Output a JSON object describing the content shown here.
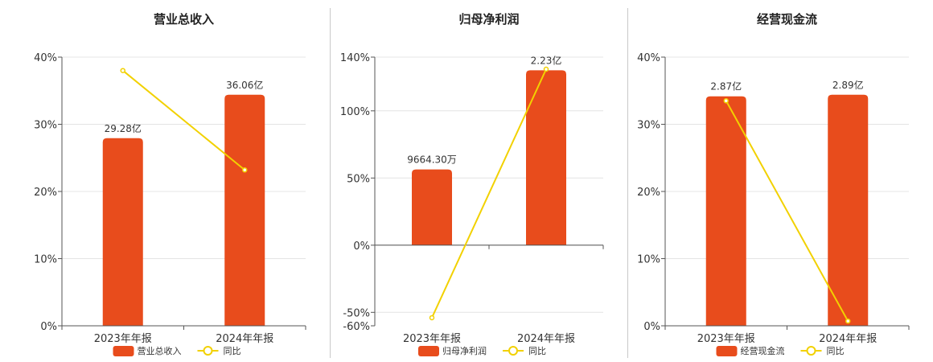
{
  "colors": {
    "bar": "#E84C1C",
    "line": "#F2D100",
    "grid": "#e4e4e4",
    "axis": "#555555"
  },
  "legend_line_label": "同比",
  "chart_data": [
    {
      "type": "bar",
      "title": "营业总收入",
      "categories": [
        "2023年年报",
        "2024年年报"
      ],
      "series": [
        {
          "name": "营业总收入",
          "type": "bar",
          "values": [
            29.28,
            36.06
          ],
          "labels": [
            "29.28亿",
            "36.06亿"
          ]
        },
        {
          "name": "同比",
          "type": "line",
          "values": [
            38.0,
            23.2
          ]
        }
      ],
      "y_axis": {
        "ticks": [
          0,
          10,
          20,
          30,
          40
        ],
        "tick_labels": [
          "0%",
          "10%",
          "20%",
          "30%",
          "40%"
        ],
        "ylim": [
          0,
          40
        ]
      },
      "grid": true,
      "legend_position": "bottom"
    },
    {
      "type": "bar",
      "title": "归母净利润",
      "categories": [
        "2023年年报",
        "2024年年报"
      ],
      "series": [
        {
          "name": "归母净利润",
          "type": "bar",
          "values": [
            0.96643,
            2.23
          ],
          "labels": [
            "9664.30万",
            "2.23亿"
          ]
        },
        {
          "name": "同比",
          "type": "line",
          "values": [
            -54.0,
            131.0
          ]
        }
      ],
      "y_axis": {
        "ticks": [
          -60,
          -50,
          0,
          50,
          100,
          140
        ],
        "tick_labels": [
          "-60%",
          "-50%",
          "0%",
          "50%",
          "100%",
          "140%"
        ],
        "ylim": [
          -60,
          140
        ]
      },
      "grid": true,
      "legend_position": "bottom"
    },
    {
      "type": "bar",
      "title": "经营现金流",
      "categories": [
        "2023年年报",
        "2024年年报"
      ],
      "series": [
        {
          "name": "经营现金流",
          "type": "bar",
          "values": [
            2.87,
            2.89
          ],
          "labels": [
            "2.87亿",
            "2.89亿"
          ]
        },
        {
          "name": "同比",
          "type": "line",
          "values": [
            33.5,
            0.7
          ]
        }
      ],
      "y_axis": {
        "ticks": [
          0,
          10,
          20,
          30,
          40
        ],
        "tick_labels": [
          "0%",
          "10%",
          "20%",
          "30%",
          "40%"
        ],
        "ylim": [
          0,
          40
        ]
      },
      "grid": true,
      "legend_position": "bottom"
    }
  ]
}
